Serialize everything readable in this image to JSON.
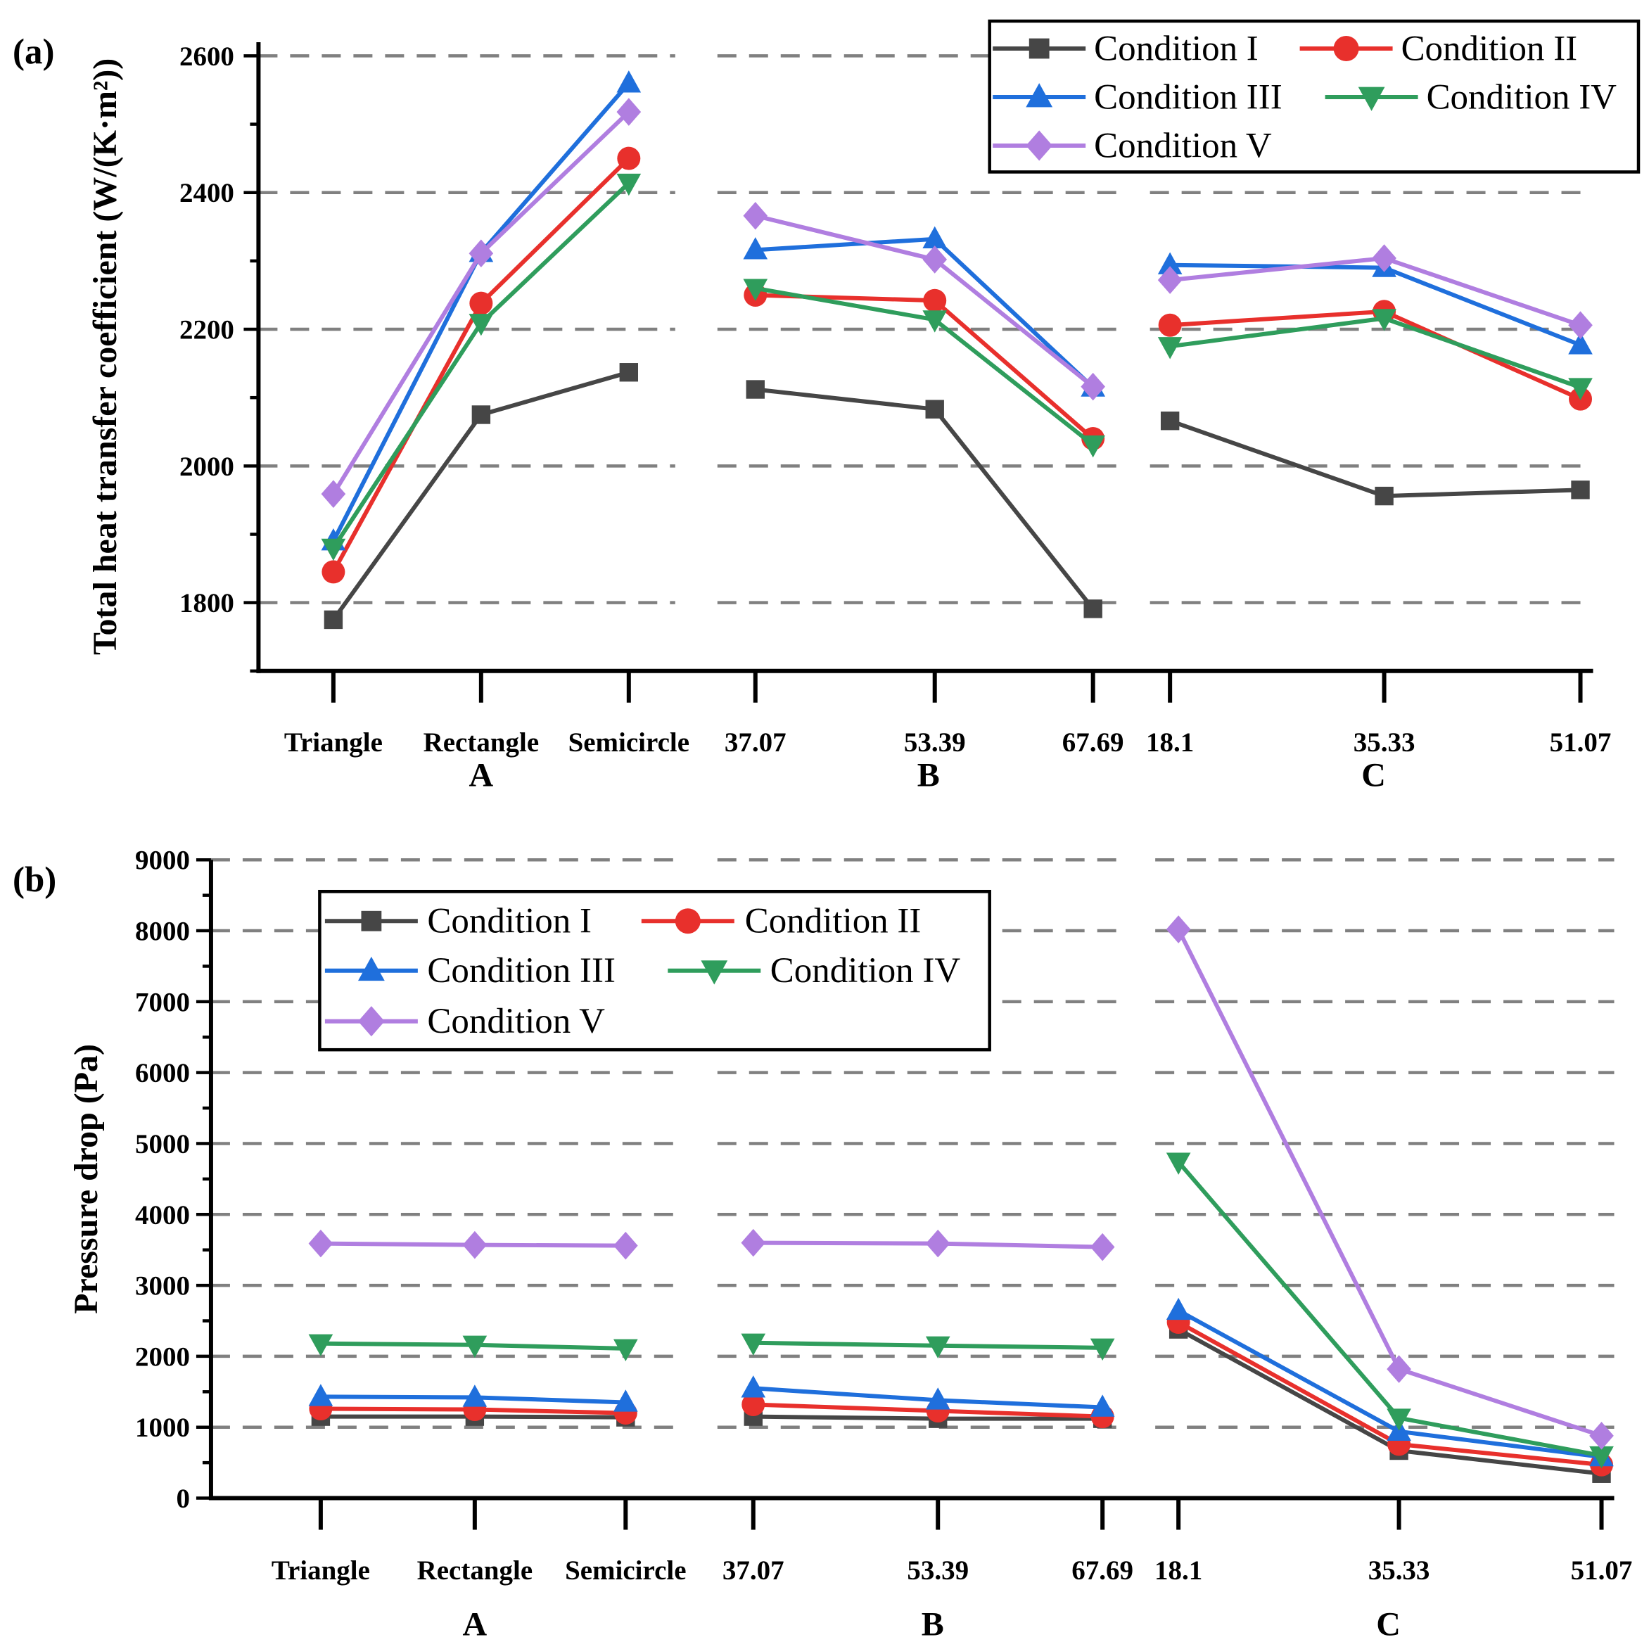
{
  "chart_data": [
    {
      "type": "line",
      "panel_label": "(a)",
      "ylabel": "Total heat transfer coefficient (W/(K·m²))",
      "ylim": [
        1700,
        2620
      ],
      "yticks": [
        1800,
        2000,
        2200,
        2400,
        2600
      ],
      "grid": "dashed horizontal at major ticks",
      "legend_position": "top-right",
      "groups": [
        {
          "name": "A",
          "categories": [
            "Triangle",
            "Rectangle",
            "Semicircle"
          ]
        },
        {
          "name": "B",
          "categories": [
            "37.07",
            "53.39",
            "67.69"
          ]
        },
        {
          "name": "C",
          "categories": [
            "18.1",
            "35.33",
            "51.07"
          ]
        }
      ],
      "series": [
        {
          "name": "Condition I",
          "marker": "square",
          "color": "#464646",
          "values": [
            1775,
            2075,
            2137,
            2112,
            2083,
            1791,
            2066,
            1956,
            1965
          ]
        },
        {
          "name": "Condition II",
          "marker": "circle",
          "color": "#e8302c",
          "values": [
            1845,
            2238,
            2450,
            2250,
            2242,
            2040,
            2206,
            2226,
            2098
          ]
        },
        {
          "name": "Condition III",
          "marker": "triangle-up",
          "color": "#1f6fdc",
          "values": [
            1890,
            2312,
            2560,
            2316,
            2332,
            2115,
            2294,
            2290,
            2177
          ]
        },
        {
          "name": "Condition IV",
          "marker": "triangle-down",
          "color": "#2f9d5c",
          "values": [
            1880,
            2209,
            2414,
            2260,
            2214,
            2031,
            2175,
            2216,
            2115
          ]
        },
        {
          "name": "Condition V",
          "marker": "diamond",
          "color": "#b07ee0",
          "values": [
            1959,
            2311,
            2518,
            2366,
            2302,
            2116,
            2272,
            2304,
            2206
          ]
        }
      ]
    },
    {
      "type": "line",
      "panel_label": "(b)",
      "ylabel": "Pressure drop (Pa)",
      "ylim": [
        0,
        9000
      ],
      "yticks": [
        0,
        1000,
        2000,
        3000,
        4000,
        5000,
        6000,
        7000,
        8000,
        9000
      ],
      "grid": "dashed horizontal at major ticks",
      "legend_position": "top-left",
      "groups": [
        {
          "name": "A",
          "categories": [
            "Triangle",
            "Rectangle",
            "Semicircle"
          ]
        },
        {
          "name": "B",
          "categories": [
            "37.07",
            "53.39",
            "67.69"
          ]
        },
        {
          "name": "C",
          "categories": [
            "18.1",
            "35.33",
            "51.07"
          ]
        }
      ],
      "series": [
        {
          "name": "Condition I",
          "marker": "square",
          "color": "#464646",
          "values": [
            1150,
            1150,
            1140,
            1150,
            1120,
            1120,
            2380,
            670,
            345
          ]
        },
        {
          "name": "Condition II",
          "marker": "circle",
          "color": "#e8302c",
          "values": [
            1260,
            1250,
            1200,
            1320,
            1230,
            1150,
            2480,
            760,
            470
          ]
        },
        {
          "name": "Condition III",
          "marker": "triangle-up",
          "color": "#1f6fdc",
          "values": [
            1430,
            1420,
            1350,
            1550,
            1380,
            1280,
            2645,
            940,
            580
          ]
        },
        {
          "name": "Condition IV",
          "marker": "triangle-down",
          "color": "#2f9d5c",
          "values": [
            2180,
            2160,
            2110,
            2190,
            2150,
            2120,
            4740,
            1130,
            600
          ]
        },
        {
          "name": "Condition V",
          "marker": "diamond",
          "color": "#b07ee0",
          "values": [
            3590,
            3570,
            3560,
            3600,
            3590,
            3540,
            8020,
            1820,
            880
          ]
        }
      ]
    }
  ]
}
